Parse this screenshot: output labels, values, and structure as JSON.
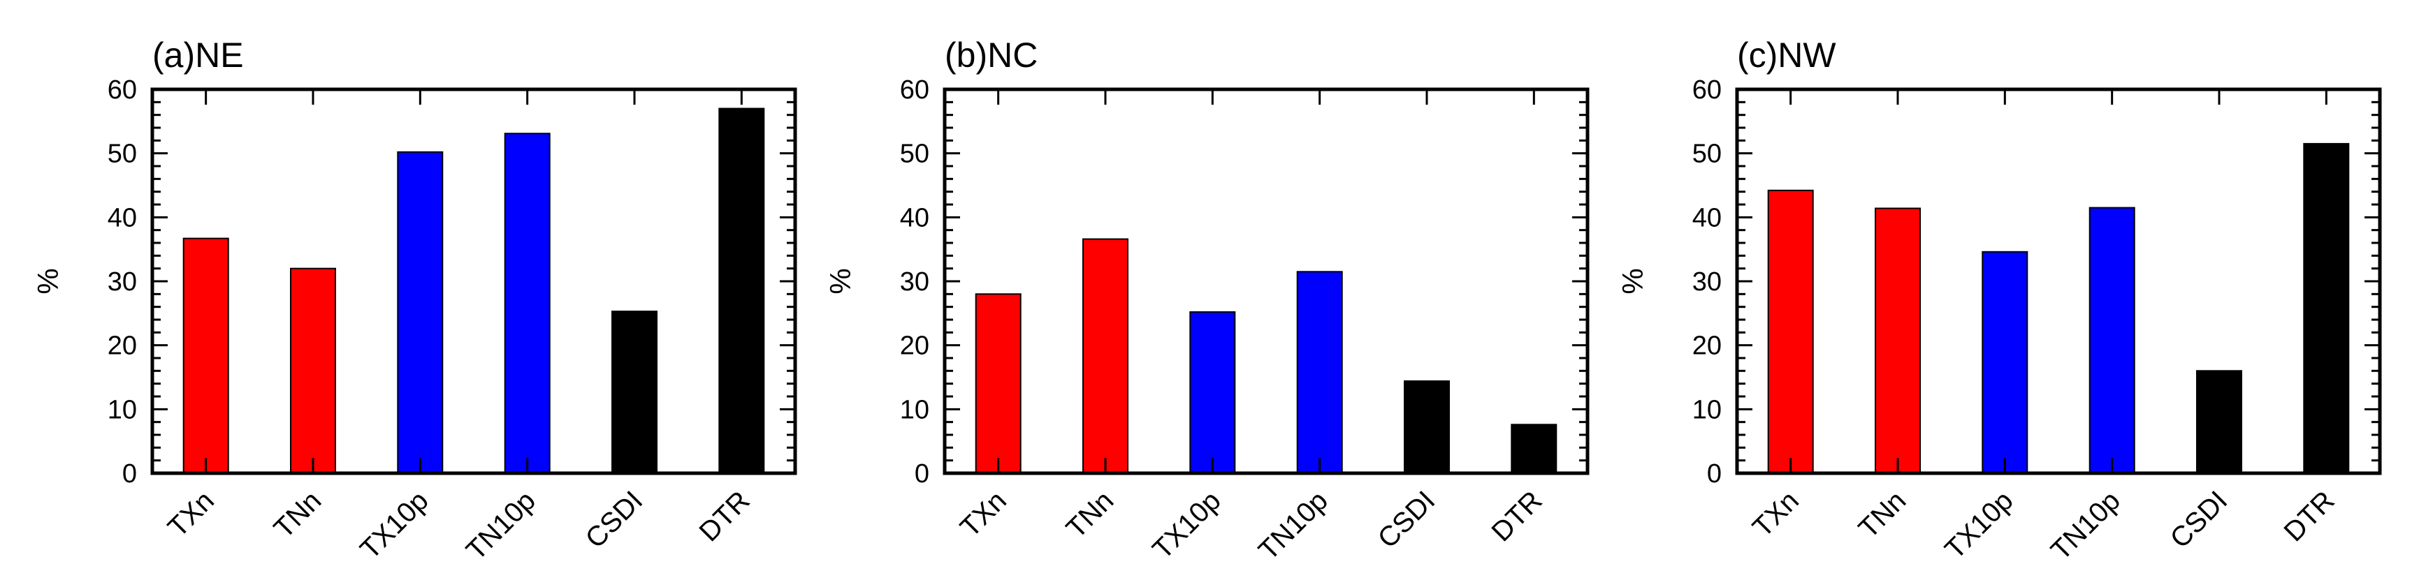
{
  "chart_data": [
    {
      "type": "bar",
      "title": "(a)NE",
      "xlabel": "",
      "ylabel": "%",
      "ylim": [
        0,
        60
      ],
      "yticks": [
        "0",
        "10",
        "20",
        "30",
        "40",
        "50",
        "60"
      ],
      "categories": [
        "TXn",
        "TNn",
        "TX10p",
        "TN10p",
        "CSDI",
        "DTR"
      ],
      "values": [
        36.7,
        32.0,
        50.2,
        53.1,
        25.3,
        57.0
      ],
      "colors": [
        "#ff0000",
        "#ff0000",
        "#0000ff",
        "#0000ff",
        "#000000",
        "#000000"
      ],
      "grid": false
    },
    {
      "type": "bar",
      "title": "(b)NC",
      "xlabel": "",
      "ylabel": "%",
      "ylim": [
        0,
        60
      ],
      "yticks": [
        "0",
        "10",
        "20",
        "30",
        "40",
        "50",
        "60"
      ],
      "categories": [
        "TXn",
        "TNn",
        "TX10p",
        "TN10p",
        "CSDI",
        "DTR"
      ],
      "values": [
        28.0,
        36.6,
        25.2,
        31.5,
        14.4,
        7.6
      ],
      "colors": [
        "#ff0000",
        "#ff0000",
        "#0000ff",
        "#0000ff",
        "#000000",
        "#000000"
      ],
      "grid": false
    },
    {
      "type": "bar",
      "title": "(c)NW",
      "xlabel": "",
      "ylabel": "%",
      "ylim": [
        0,
        60
      ],
      "yticks": [
        "0",
        "10",
        "20",
        "30",
        "40",
        "50",
        "60"
      ],
      "categories": [
        "TXn",
        "TNn",
        "TX10p",
        "TN10p",
        "CSDI",
        "DTR"
      ],
      "values": [
        44.2,
        41.4,
        34.6,
        41.5,
        16.0,
        51.5
      ],
      "colors": [
        "#ff0000",
        "#ff0000",
        "#0000ff",
        "#0000ff",
        "#000000",
        "#000000"
      ],
      "grid": false
    }
  ]
}
